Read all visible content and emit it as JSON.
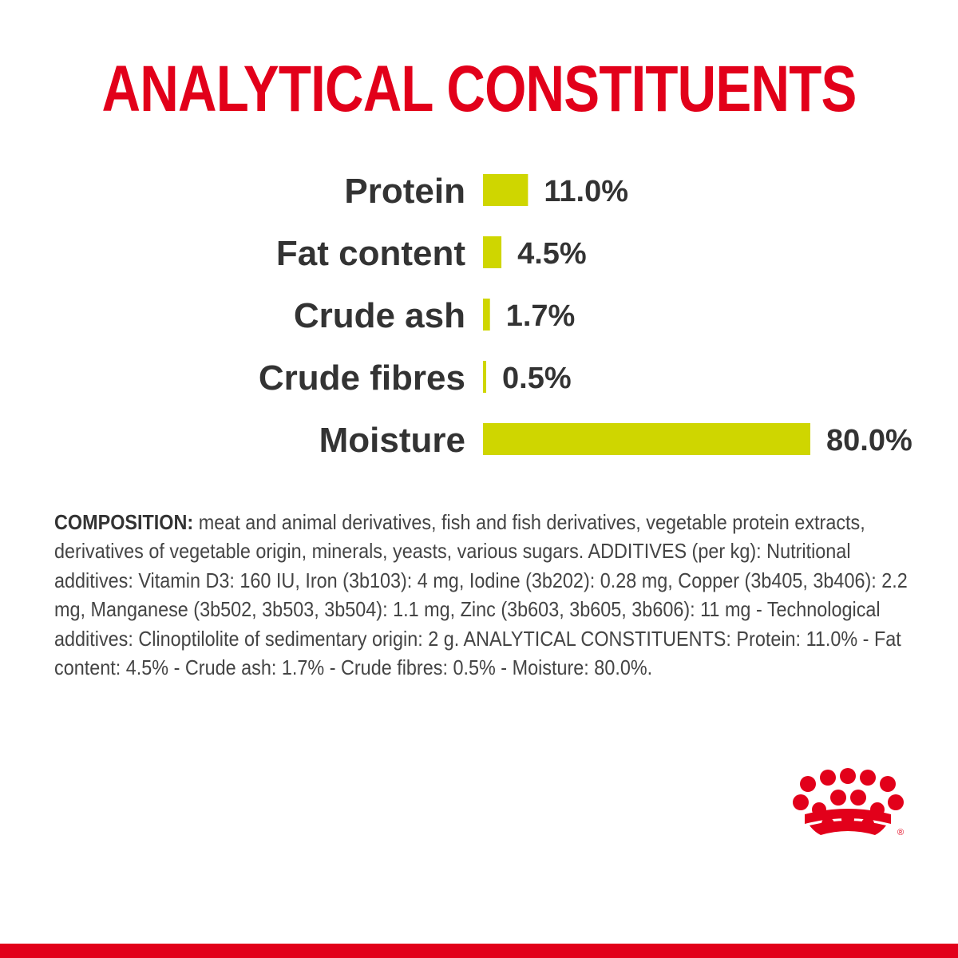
{
  "title": "ANALYTICAL CONSTITUENTS",
  "chart_data": {
    "type": "bar",
    "orientation": "horizontal",
    "categories": [
      "Protein",
      "Fat content",
      "Crude ash",
      "Crude fibres",
      "Moisture"
    ],
    "values": [
      11.0,
      4.5,
      1.7,
      0.5,
      80.0
    ],
    "value_labels": [
      "11.0%",
      "4.5%",
      "1.7%",
      "0.5%",
      "80.0%"
    ],
    "unit": "%",
    "xlim": [
      0,
      80
    ],
    "bar_color": "#cfd600",
    "title": "",
    "xlabel": "",
    "ylabel": "",
    "grid": false,
    "legend": "none"
  },
  "composition": {
    "label": "COMPOSITION:",
    "text": " meat and animal derivatives, fish and fish derivatives, vegetable protein extracts, derivatives of vegetable origin, minerals, yeasts, various sugars. ADDITIVES (per kg): Nutritional additives: Vitamin D3: 160 IU, Iron (3b103): 4 mg, Iodine (3b202): 0.28 mg, Copper (3b405, 3b406): 2.2 mg, Manganese (3b502, 3b503, 3b504): 1.1 mg, Zinc (3b603, 3b605, 3b606): 11 mg - Technological additives: Clinoptilolite of sedimentary origin: 2 g. ANALYTICAL CONSTITUENTS: Protein: 11.0% - Fat content: 4.5% - Crude ash: 1.7% - Crude fibres: 0.5% - Moisture: 80.0%."
  },
  "brand": {
    "logo": "royal-canin-crown-icon",
    "color": "#e2001a",
    "registered_mark": "®"
  }
}
